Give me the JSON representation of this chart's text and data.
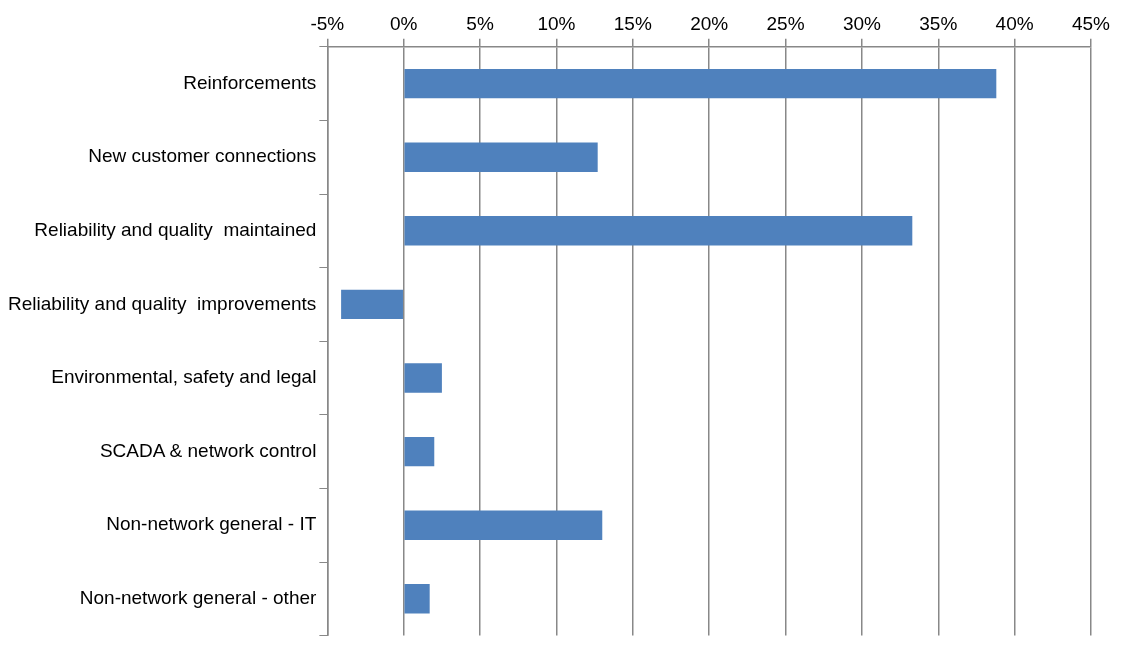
{
  "chart_data": {
    "type": "bar",
    "orientation": "horizontal",
    "categories": [
      "Reinforcements",
      "New customer connections",
      "Reliability and quality  maintained",
      "Reliability and quality  improvements",
      "Environmental, safety and legal",
      "SCADA & network control",
      "Non-network general - IT",
      "Non-network general - other"
    ],
    "values": [
      38.8,
      12.7,
      33.3,
      -4.1,
      2.5,
      2.0,
      13.0,
      1.7
    ],
    "color": "#4f81bd",
    "xlim": [
      -5,
      45
    ],
    "xticks": [
      {
        "value": -5,
        "label": "-5%"
      },
      {
        "value": 0,
        "label": "0%"
      },
      {
        "value": 5,
        "label": "5%"
      },
      {
        "value": 10,
        "label": "10%"
      },
      {
        "value": 15,
        "label": "15%"
      },
      {
        "value": 20,
        "label": "20%"
      },
      {
        "value": 25,
        "label": "25%"
      },
      {
        "value": 30,
        "label": "30%"
      },
      {
        "value": 35,
        "label": "35%"
      },
      {
        "value": 40,
        "label": "40%"
      },
      {
        "value": 45,
        "label": "45%"
      }
    ],
    "grid": "x",
    "legend": false
  }
}
